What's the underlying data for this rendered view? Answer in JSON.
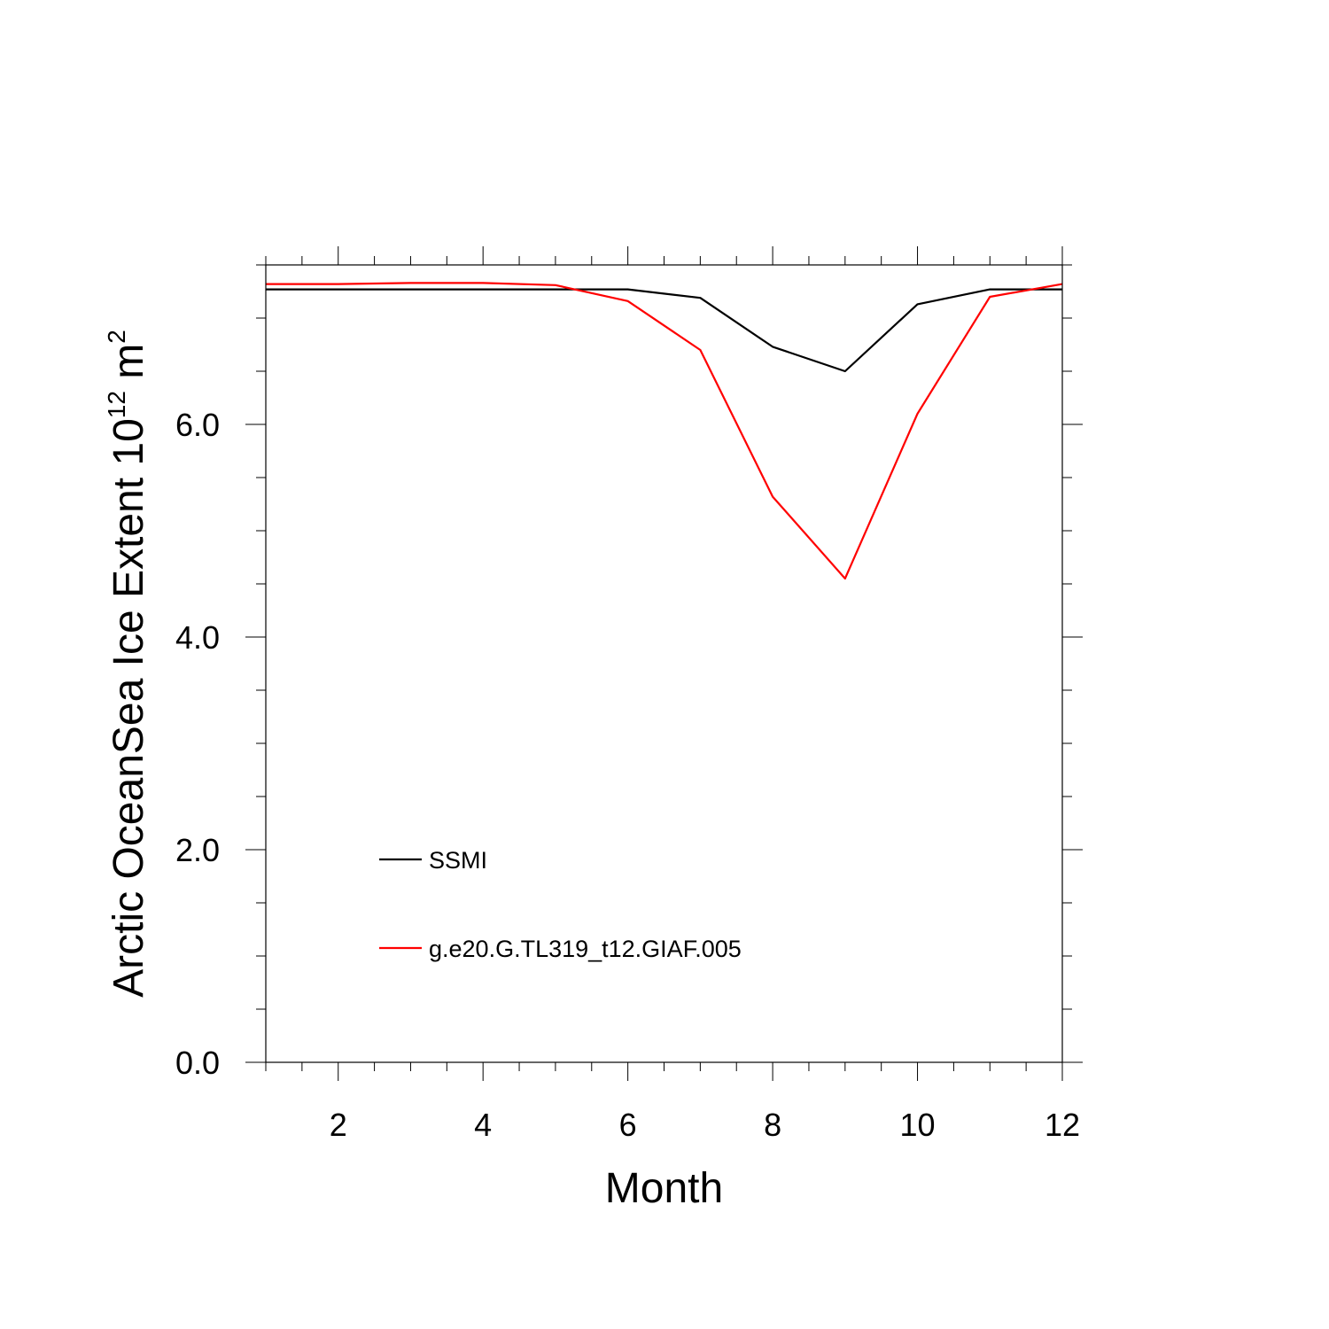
{
  "chart_data": {
    "type": "line",
    "x": [
      1,
      2,
      3,
      4,
      5,
      6,
      7,
      8,
      9,
      10,
      11,
      12
    ],
    "series": [
      {
        "name": "SSMI",
        "color": "#000000",
        "values": [
          7.27,
          7.27,
          7.27,
          7.27,
          7.27,
          7.27,
          7.19,
          6.73,
          6.5,
          7.13,
          7.27,
          7.27
        ]
      },
      {
        "name": "g.e20.G.TL319_t12.GIAF.005",
        "color": "#ff0000",
        "values": [
          7.32,
          7.32,
          7.33,
          7.33,
          7.31,
          7.16,
          6.7,
          5.32,
          4.55,
          6.1,
          7.2,
          7.32
        ]
      }
    ],
    "xlabel": "Month",
    "ylabel": {
      "prefix": "Arctic OceanSea Ice Extent 10",
      "superscript1": "12",
      "middle": " m",
      "superscript2": "2"
    },
    "xlim": [
      1,
      12
    ],
    "ylim": [
      0,
      7.5
    ],
    "xticks": [
      {
        "value": 2,
        "label": "2"
      },
      {
        "value": 4,
        "label": "4"
      },
      {
        "value": 6,
        "label": "6"
      },
      {
        "value": 8,
        "label": "8"
      },
      {
        "value": 10,
        "label": "10"
      },
      {
        "value": 12,
        "label": "12"
      }
    ],
    "yticks": [
      {
        "value": 0,
        "label": "0.0"
      },
      {
        "value": 2,
        "label": "2.0"
      },
      {
        "value": 4,
        "label": "4.0"
      },
      {
        "value": 6,
        "label": "6.0"
      }
    ],
    "x_minor_step": 0.5,
    "y_minor_step": 0.5,
    "grid": false,
    "legend_position": "lower-left inside"
  }
}
